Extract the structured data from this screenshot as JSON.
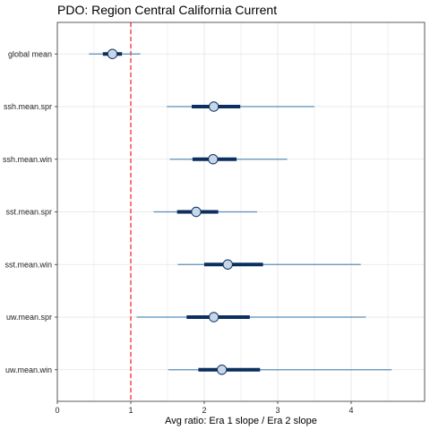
{
  "chart_data": {
    "type": "forest",
    "title": "PDO: Region Central California Current",
    "xlabel": "Avg ratio: Era 1 slope / Era 2 slope",
    "ylabel": "",
    "xlim": [
      0,
      5.0
    ],
    "xticks": [
      0,
      1,
      2,
      3,
      4
    ],
    "reference_line": {
      "x": 1,
      "style": "dashed",
      "color": "#ff2a2a"
    },
    "grid": true,
    "categories": [
      "global mean",
      "ssh.mean.spr",
      "ssh.mean.win",
      "sst.mean.spr",
      "sst.mean.win",
      "uw.mean.spr",
      "uw.mean.win"
    ],
    "series": [
      {
        "point": [
          0.75,
          2.13,
          2.12,
          1.89,
          2.32,
          2.13,
          2.24
        ],
        "inner_lo": [
          0.62,
          1.83,
          1.84,
          1.63,
          2.0,
          1.76,
          1.92
        ],
        "inner_hi": [
          0.88,
          2.49,
          2.44,
          2.19,
          2.8,
          2.62,
          2.76
        ],
        "outer_lo": [
          0.43,
          1.49,
          1.53,
          1.31,
          1.64,
          1.08,
          1.51
        ],
        "outer_hi": [
          1.13,
          3.5,
          3.13,
          2.72,
          4.13,
          4.2,
          4.55
        ]
      }
    ],
    "colors": {
      "outer_interval": "#5b8db8",
      "inner_interval": "#0b2f5e",
      "point_fill": "#c6d7ea",
      "point_stroke": "#0b2f5e",
      "panel_border": "#333333",
      "grid": "#e3e3e3"
    }
  }
}
